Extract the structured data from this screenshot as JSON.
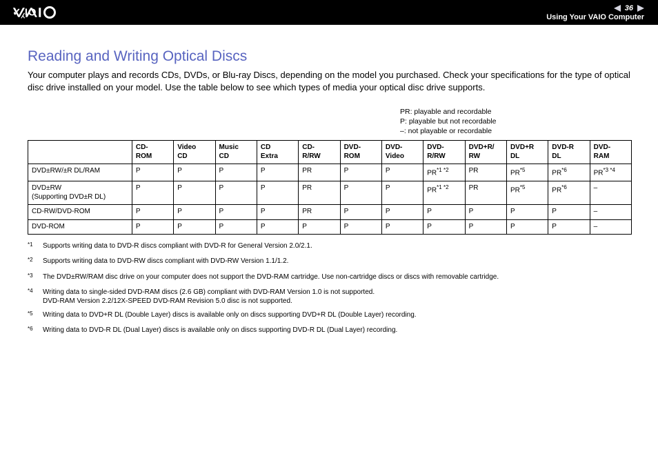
{
  "header": {
    "page_number": "36",
    "section": "Using Your VAIO Computer"
  },
  "heading": "Reading and Writing Optical Discs",
  "intro": "Your computer plays and records CDs, DVDs, or Blu-ray Discs, depending on the model you purchased. Check your specifications for the type of optical disc drive installed on your model. Use the table below to see which types of media your optical disc drive supports.",
  "legend": {
    "line1": "PR: playable and recordable",
    "line2": "P: playable but not recordable",
    "line3": "–: not playable or recordable"
  },
  "table": {
    "columns": [
      "CD-ROM",
      "Video CD",
      "Music CD",
      "CD Extra",
      "CD-R/RW",
      "DVD-ROM",
      "DVD-Video",
      "DVD-R/RW",
      "DVD+R/RW",
      "DVD+R DL",
      "DVD-R DL",
      "DVD-RAM"
    ],
    "rows": [
      {
        "label": "DVD±RW/±R DL/RAM",
        "cells": [
          "P",
          "P",
          "P",
          "P",
          "PR",
          "P",
          "P",
          {
            "v": "PR",
            "sup": "*1 *2"
          },
          "PR",
          {
            "v": "PR",
            "sup": "*5"
          },
          {
            "v": "PR",
            "sup": "*6"
          },
          {
            "v": "PR",
            "sup": "*3 *4"
          }
        ]
      },
      {
        "label": "DVD±RW\n(Supporting DVD±R DL)",
        "cells": [
          "P",
          "P",
          "P",
          "P",
          "PR",
          "P",
          "P",
          {
            "v": "PR",
            "sup": "*1 *2"
          },
          "PR",
          {
            "v": "PR",
            "sup": "*5"
          },
          {
            "v": "PR",
            "sup": "*6"
          },
          "–"
        ]
      },
      {
        "label": "CD-RW/DVD-ROM",
        "cells": [
          "P",
          "P",
          "P",
          "P",
          "PR",
          "P",
          "P",
          "P",
          "P",
          "P",
          "P",
          "–"
        ]
      },
      {
        "label": "DVD-ROM",
        "cells": [
          "P",
          "P",
          "P",
          "P",
          "P",
          "P",
          "P",
          "P",
          "P",
          "P",
          "P",
          "–"
        ]
      }
    ]
  },
  "footnotes": [
    {
      "num": "*1",
      "text": "Supports writing data to DVD-R discs compliant with DVD-R for General Version 2.0/2.1."
    },
    {
      "num": "*2",
      "text": "Supports writing data to DVD-RW discs compliant with DVD-RW Version 1.1/1.2."
    },
    {
      "num": "*3",
      "text": "The DVD±RW/RAM disc drive on your computer does not support the DVD-RAM cartridge. Use non-cartridge discs or discs with removable cartridge."
    },
    {
      "num": "*4",
      "text": "Writing data to single-sided DVD-RAM discs (2.6 GB) compliant with DVD-RAM Version 1.0 is not supported.\nDVD-RAM Version 2.2/12X-SPEED DVD-RAM Revision 5.0 disc is not supported."
    },
    {
      "num": "*5",
      "text": "Writing data to DVD+R DL (Double Layer) discs is available only on discs supporting DVD+R DL (Double Layer) recording."
    },
    {
      "num": "*6",
      "text": "Writing data to DVD-R DL (Dual Layer) discs is available only on discs supporting DVD-R DL (Dual Layer) recording."
    }
  ]
}
